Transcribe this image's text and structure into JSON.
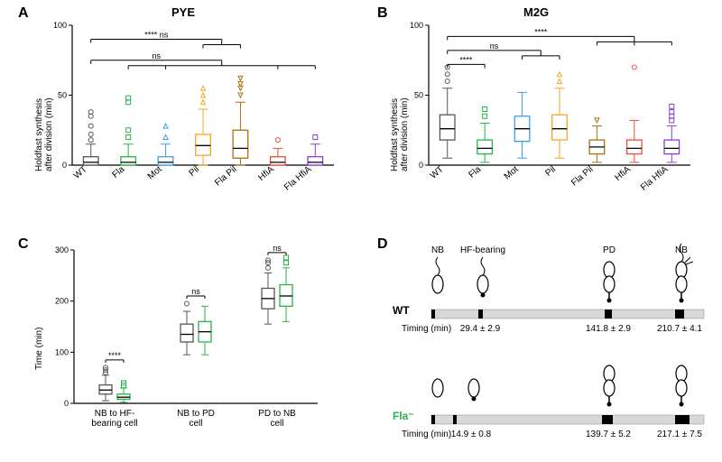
{
  "panelA": {
    "label": "A",
    "title": "PYE",
    "ylabel": "Holdfast synthesis\nafter division (min)",
    "ylim": [
      0,
      100
    ],
    "ytick_step": 50,
    "ytick_minor": 25,
    "type": "boxplot",
    "categories": [
      "WT",
      "Fla",
      "Mot",
      "Pil",
      "Fla Pil",
      "HfiA",
      "Fla HfiA"
    ],
    "colors": [
      "#555555",
      "#2bb24c",
      "#3aa0e8",
      "#f5a623",
      "#a57310",
      "#e94f37",
      "#8b3fd8"
    ],
    "markers": [
      "circle",
      "square",
      "triangle-up",
      "triangle-up",
      "triangle-down",
      "circle",
      "square"
    ],
    "boxes": [
      {
        "q1": 0,
        "median": 2,
        "q3": 6,
        "wlow": 0,
        "whigh": 15,
        "outliers": [
          18,
          22,
          28,
          35,
          38
        ]
      },
      {
        "q1": 0,
        "median": 2,
        "q3": 6,
        "wlow": 0,
        "whigh": 15,
        "outliers": [
          20,
          25,
          45,
          48
        ]
      },
      {
        "q1": 0,
        "median": 2,
        "q3": 6,
        "wlow": 0,
        "whigh": 15,
        "outliers": [
          20,
          28
        ]
      },
      {
        "q1": 7,
        "median": 14,
        "q3": 22,
        "wlow": 0,
        "whigh": 40,
        "outliers": [
          45,
          50,
          55
        ]
      },
      {
        "q1": 5,
        "median": 12,
        "q3": 25,
        "wlow": 0,
        "whigh": 45,
        "outliers": [
          50,
          55,
          58,
          62
        ]
      },
      {
        "q1": 0,
        "median": 2,
        "q3": 6,
        "wlow": 0,
        "whigh": 12,
        "outliers": [
          18
        ]
      },
      {
        "q1": 0,
        "median": 2,
        "q3": 6,
        "wlow": 0,
        "whigh": 15,
        "outliers": [
          20
        ]
      }
    ],
    "annotations": [
      {
        "from": 0,
        "to": [
          1,
          2,
          5,
          6
        ],
        "text": "ns",
        "y": 75
      },
      {
        "from": 0,
        "to": [
          3,
          4
        ],
        "text": "****       ns",
        "y": 90
      }
    ]
  },
  "panelB": {
    "label": "B",
    "title": "M2G",
    "ylabel": "Holdfast synthesis\nafter division (min)",
    "ylim": [
      0,
      100
    ],
    "ytick_step": 50,
    "ytick_minor": 25,
    "type": "boxplot",
    "categories": [
      "WT",
      "Fla",
      "Mot",
      "Pil",
      "Fla Pil",
      "HfiA",
      "Fla HfiA"
    ],
    "colors": [
      "#555555",
      "#2bb24c",
      "#3aa0e8",
      "#f5a623",
      "#a57310",
      "#e94f37",
      "#8b3fd8"
    ],
    "markers": [
      "circle",
      "square",
      "triangle-up",
      "triangle-up",
      "triangle-down",
      "circle",
      "square"
    ],
    "boxes": [
      {
        "q1": 18,
        "median": 26,
        "q3": 36,
        "wlow": 5,
        "whigh": 55,
        "outliers": [
          60,
          65,
          70
        ]
      },
      {
        "q1": 8,
        "median": 12,
        "q3": 18,
        "wlow": 2,
        "whigh": 30,
        "outliers": [
          35,
          40
        ]
      },
      {
        "q1": 17,
        "median": 26,
        "q3": 35,
        "wlow": 5,
        "whigh": 52,
        "outliers": []
      },
      {
        "q1": 18,
        "median": 26,
        "q3": 36,
        "wlow": 5,
        "whigh": 55,
        "outliers": [
          60,
          65
        ]
      },
      {
        "q1": 8,
        "median": 13,
        "q3": 18,
        "wlow": 2,
        "whigh": 28,
        "outliers": [
          32
        ]
      },
      {
        "q1": 8,
        "median": 12,
        "q3": 18,
        "wlow": 2,
        "whigh": 32,
        "outliers": [
          70
        ]
      },
      {
        "q1": 8,
        "median": 12,
        "q3": 18,
        "wlow": 2,
        "whigh": 28,
        "outliers": [
          32,
          35,
          38,
          42
        ]
      }
    ],
    "annotations": [
      {
        "from": 0,
        "to": [
          1
        ],
        "text": "****",
        "y": 72,
        "pair": true
      },
      {
        "from": 0,
        "to": [
          2,
          3
        ],
        "text": "ns",
        "y": 82
      },
      {
        "from": 0,
        "to": [
          4,
          5,
          6
        ],
        "text": "****",
        "y": 92
      }
    ]
  },
  "panelC": {
    "label": "C",
    "ylabel": "Time (min)",
    "ylim": [
      0,
      300
    ],
    "ytick_step": 100,
    "type": "boxplot",
    "groups": [
      "NB to HF-\nbearing cell",
      "NB to PD\ncell",
      "PD to NB\ncell"
    ],
    "sub_colors": [
      "#555555",
      "#2bb24c"
    ],
    "boxes": [
      [
        {
          "q1": 18,
          "median": 26,
          "q3": 36,
          "wlow": 5,
          "whigh": 55,
          "outliers": [
            60,
            65,
            70
          ]
        },
        {
          "q1": 8,
          "median": 12,
          "q3": 18,
          "wlow": 2,
          "whigh": 30,
          "outliers": [
            35,
            40
          ]
        }
      ],
      [
        {
          "q1": 120,
          "median": 135,
          "q3": 155,
          "wlow": 95,
          "whigh": 180,
          "outliers": [
            195
          ]
        },
        {
          "q1": 120,
          "median": 140,
          "q3": 160,
          "wlow": 95,
          "whigh": 190,
          "outliers": []
        }
      ],
      [
        {
          "q1": 185,
          "median": 205,
          "q3": 225,
          "wlow": 155,
          "whigh": 255,
          "outliers": [
            265,
            275,
            280
          ]
        },
        {
          "q1": 190,
          "median": 210,
          "q3": 232,
          "wlow": 160,
          "whigh": 265,
          "outliers": [
            275,
            285
          ]
        }
      ]
    ],
    "annotations": [
      {
        "group": 0,
        "text": "****",
        "y": 85
      },
      {
        "group": 1,
        "text": "ns",
        "y": 210
      },
      {
        "group": 2,
        "text": "ns",
        "y": 295
      }
    ]
  },
  "panelD": {
    "label": "D",
    "strains": [
      "WT",
      "Fla⁻"
    ],
    "strain_colors": [
      "#000000",
      "#2bb24c"
    ],
    "stage_labels": [
      "NB",
      "HF-bearing",
      "PD",
      "NB"
    ],
    "timing_label": "Timing (min)",
    "timings": {
      "WT": [
        "29.4 ± 2.9",
        "141.8 ± 2.9",
        "210.7 ± 4.1"
      ],
      "Fla": [
        "14.9 ± 0.8",
        "139.7 ± 5.2",
        "217.1 ± 7.5"
      ]
    },
    "bar_color": "#d8d8d8",
    "bar_tick_color": "#000000"
  }
}
